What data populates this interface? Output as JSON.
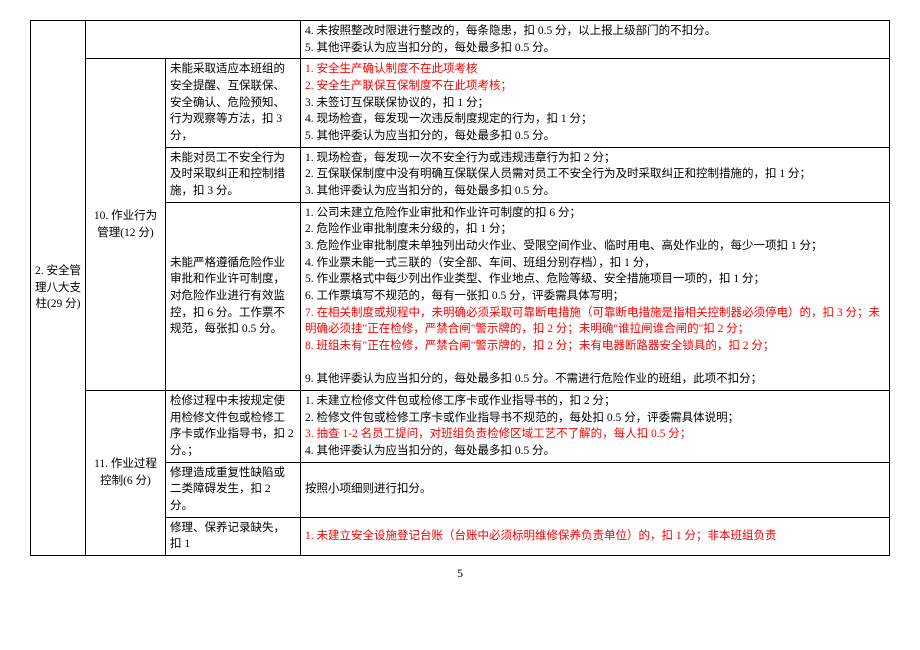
{
  "pageNumber": "5",
  "col1_label": "2. 安全管理八大支柱(29 分)",
  "rows": [
    {
      "col4_lines": [
        {
          "t": "4. 未按照整改时限进行整改的，每条隐患，扣 0.5 分，以上报上级部门的不扣分。",
          "red": false
        },
        {
          "t": "5. 其他评委认为应当扣分的，每处最多扣 0.5 分。",
          "red": false
        }
      ]
    },
    {
      "col2": "10. 作业行为管理(12 分)",
      "col3": "未能采取适应本班组的安全提醒、互保联保、安全确认、危险预知、行为观察等方法，扣 3 分，",
      "col4_lines": [
        {
          "t": "1. 安全生产确认制度不在此项考核",
          "red": true
        },
        {
          "t": "2. 安全生产联保互保制度不在此项考核；",
          "red": true
        },
        {
          "t": "3. 未签订互保联保协议的，扣 1 分；",
          "red": false
        },
        {
          "t": "4. 现场检查，每发现一次违反制度规定的行为，扣 1 分；",
          "red": false
        },
        {
          "t": "5. 其他评委认为应当扣分的，每处最多扣 0.5 分。",
          "red": false
        }
      ]
    },
    {
      "col3": "未能对员工不安全行为及时采取纠正和控制措施，扣 3 分。",
      "col4_lines": [
        {
          "t": "1. 现场检查，每发现一次不安全行为或违规违章行为扣 2 分；",
          "red": false
        },
        {
          "t": "2. 互保联保制度中没有明确互保联保人员需对员工不安全行为及时采取纠正和控制措施的，扣 1 分；",
          "red": false
        },
        {
          "t": "3. 其他评委认为应当扣分的，每处最多扣 0.5 分。",
          "red": false
        }
      ]
    },
    {
      "col3": "未能严格遵循危险作业审批和作业许可制度，对危险作业进行有效监控，扣 6 分。工作票不规范，每张扣 0.5 分。",
      "col4_lines": [
        {
          "t": "1. 公司未建立危险作业审批和作业许可制度的扣 6 分；",
          "red": false
        },
        {
          "t": "2. 危险作业审批制度未分级的，扣 1 分；",
          "red": false
        },
        {
          "t": "3. 危险作业审批制度未单独列出动火作业、受限空间作业、临时用电、高处作业的，每少一项扣 1 分；",
          "red": false
        },
        {
          "t": "4. 作业票未能一式三联的（安全部、车间、班组分别存档），扣 1 分，",
          "red": false
        },
        {
          "t": "5. 作业票格式中每少列出作业类型、作业地点、危险等级、安全措施项目一项的，扣 1 分；",
          "red": false
        },
        {
          "t": "6. 工作票填写不规范的，每有一张扣 0.5 分，评委需具体写明；",
          "red": false
        },
        {
          "t": "7. 在相关制度或规程中，未明确必须采取可靠断电措施（可靠断电措施是指相关控制器必须停电）的，扣 3 分；未明确必须挂\"正在检修，严禁合闸\"警示牌的，扣 2 分；未明确\"谁拉闸谁合闸的\"扣 2 分；",
          "red": true
        },
        {
          "t": "8. 班组未有\"正在检修，严禁合闸\"警示牌的，扣 2 分；未有电器断路器安全锁具的，扣 2 分；",
          "red": true
        },
        {
          "t": " ",
          "red": false
        },
        {
          "t": "9. 其他评委认为应当扣分的，每处最多扣 0.5 分。不需进行危险作业的班组，此项不扣分；",
          "red": false
        }
      ]
    },
    {
      "col2": "11. 作业过程控制(6 分)",
      "col3": "检修过程中未按规定使用检修文件包或检修工序卡或作业指导书，扣 2 分。；",
      "col4_lines": [
        {
          "t": "1. 未建立检修文件包或检修工序卡或作业指导书的，扣 2 分；",
          "red": false
        },
        {
          "t": "2. 检修文件包或检修工序卡或作业指导书不规范的，每处扣 0.5 分，评委需具体说明；",
          "red": false
        },
        {
          "t": "3. 抽查 1-2 名员工提问，对班组负责检修区域工艺不了解的，每人扣 0.5 分；",
          "red": true
        },
        {
          "t": "4. 其他评委认为应当扣分的，每处最多扣 0.5 分。",
          "red": false
        }
      ]
    },
    {
      "col3": "修理造成重复性缺陷或二类障碍发生，扣 2 分。",
      "col4_lines": [
        {
          "t": "按照小项细则进行扣分。",
          "red": false
        }
      ]
    },
    {
      "col3": "修理、保养记录缺失，扣 1",
      "col4_lines": [
        {
          "t": "1. 未建立安全设施登记台账（台账中必须标明维修保养负责单位）的，扣 1 分；非本班组负责",
          "red": true
        }
      ]
    }
  ]
}
